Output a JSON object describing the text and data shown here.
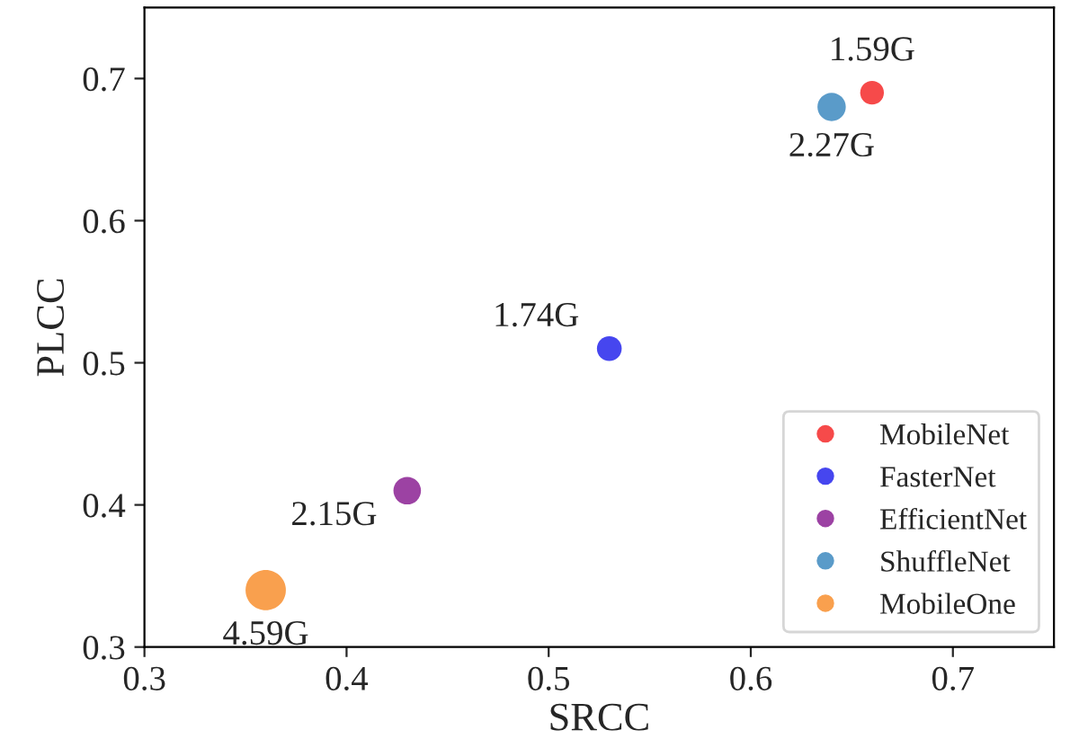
{
  "chart_data": {
    "type": "bubble",
    "xlabel": "SRCC",
    "ylabel": "PLCC",
    "series": [
      {
        "name": "MobileNet",
        "color": "#f64a4a",
        "x": [
          0.66
        ],
        "values": [
          0.69
        ],
        "sizes": [
          0.346
        ]
      },
      {
        "name": "FasterNet",
        "color": "#4646ef",
        "x": [
          0.53
        ],
        "values": [
          0.51
        ],
        "sizes": [
          0.379
        ]
      },
      {
        "name": "EfficientNet",
        "color": "#9c42a3",
        "x": [
          0.43
        ],
        "values": [
          0.41
        ],
        "sizes": [
          0.468
        ]
      },
      {
        "name": "ShuffleNet",
        "color": "#5a9bc9",
        "x": [
          0.64
        ],
        "values": [
          0.68
        ],
        "sizes": [
          0.495
        ]
      },
      {
        "name": "MobileOne",
        "color": "#f9a04e",
        "x": [
          0.36
        ],
        "values": [
          0.34
        ],
        "sizes": [
          1
        ]
      }
    ],
    "annotations": [
      {
        "text": "1.59G",
        "x": 0.66,
        "y": 0.69
      },
      {
        "text": "1.74G",
        "x": 0.53,
        "y": 0.51
      },
      {
        "text": "2.15G",
        "x": 0.43,
        "y": 0.41
      },
      {
        "text": "2.27G",
        "x": 0.64,
        "y": 0.68
      },
      {
        "text": "4.59G",
        "x": 0.36,
        "y": 0.34
      }
    ],
    "xlim": [
      0.3,
      0.75
    ],
    "ylim": [
      0.3,
      0.75
    ],
    "xticks": [
      0.3,
      0.4,
      0.5,
      0.6,
      0.7
    ],
    "yticks": [
      0.3,
      0.4,
      0.5,
      0.6,
      0.7
    ],
    "legend": "bottom right",
    "marker": "circle",
    "grid": false
  }
}
